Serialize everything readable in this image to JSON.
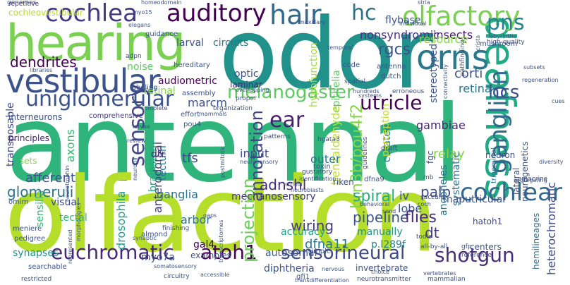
{
  "words": [
    {
      "text": "antennal",
      "color": "#2fb47c"
    },
    {
      "text": "olfaction",
      "color": "#b5de2b"
    },
    {
      "text": "odor",
      "color": "#21918c"
    },
    {
      "text": "hearing",
      "color": "#7ad151"
    },
    {
      "text": "vestibular",
      "color": "#3b528b"
    },
    {
      "text": "deafness",
      "color": "#22a884"
    },
    {
      "text": "olfactory",
      "color": "#7ad151"
    },
    {
      "text": "orns",
      "color": "#2a788e"
    },
    {
      "text": "cochlea",
      "color": "#443a83"
    },
    {
      "text": "auditory",
      "color": "#440154"
    },
    {
      "text": "hair",
      "color": "#31688e"
    },
    {
      "text": "sensory",
      "color": "#414487"
    },
    {
      "text": "uniglomerular",
      "color": "#3b528b"
    },
    {
      "text": "melanogaster",
      "color": "#5ec962"
    },
    {
      "text": "euchromatic",
      "color": "#482878"
    },
    {
      "text": "atoh1",
      "color": "#440154"
    },
    {
      "text": "sensorineural",
      "color": "#3e4989"
    },
    {
      "text": "shotgun",
      "color": "#472d7b"
    },
    {
      "text": "cochlear",
      "color": "#31688e"
    },
    {
      "text": "ganglion",
      "color": "#31688e"
    },
    {
      "text": "pns",
      "color": "#26828e"
    },
    {
      "text": "hc",
      "color": "#2c728e"
    },
    {
      "text": "hcs",
      "color": "#3b528b"
    },
    {
      "text": "utricle",
      "color": "#440154"
    },
    {
      "text": "ear",
      "color": "#481f70"
    },
    {
      "text": "annotation",
      "color": "#414487"
    },
    {
      "text": "brn3b/pou4f2",
      "color": "#86d549"
    },
    {
      "text": "projection",
      "color": "#6ccd5a"
    },
    {
      "text": "pipeline",
      "color": "#3b528b"
    },
    {
      "text": "flies",
      "color": "#482878"
    },
    {
      "text": "wiring",
      "color": "#443a83"
    },
    {
      "text": "dfna11",
      "color": "#2a788e"
    },
    {
      "text": "dt",
      "color": "#443a83"
    },
    {
      "text": "spiral",
      "color": "#27ad81"
    },
    {
      "text": "palp",
      "color": "#3e4989"
    },
    {
      "text": "drosophila",
      "color": "#1f9e89"
    },
    {
      "text": "glomeruli",
      "color": "#2c728e"
    },
    {
      "text": "anterodorsal",
      "color": "#443983"
    },
    {
      "text": "adnshl",
      "color": "#482878"
    },
    {
      "text": "dendrites",
      "color": "#440154"
    },
    {
      "text": "rgcs",
      "color": "#3b528b"
    },
    {
      "text": "insects",
      "color": "#481b6d"
    },
    {
      "text": "corti",
      "color": "#3b528b"
    },
    {
      "text": "retina",
      "color": "#2c728e"
    },
    {
      "text": "gambiae",
      "color": "#482878"
    },
    {
      "text": "nonsyndromic",
      "color": "#463480"
    },
    {
      "text": "flybase",
      "color": "#3b528b"
    },
    {
      "text": "larval",
      "color": "#3b528b"
    },
    {
      "text": "circuits",
      "color": "#2c728e"
    },
    {
      "text": "resource",
      "color": "#86d549"
    },
    {
      "text": "stereotyped",
      "color": "#3b528b"
    },
    {
      "text": "epithelia",
      "color": "#5ec962"
    },
    {
      "text": "hypofunction",
      "color": "#a2da37"
    },
    {
      "text": "benzaldehyde",
      "color": "#c2df23"
    },
    {
      "text": "tfs",
      "color": "#3e4989"
    },
    {
      "text": "marcm",
      "color": "#3b528b"
    },
    {
      "text": "audiometric",
      "color": "#440154"
    },
    {
      "text": "optic",
      "color": "#3b528b"
    },
    {
      "text": "laminar",
      "color": "#482878"
    },
    {
      "text": "noise",
      "color": "#5ec962"
    },
    {
      "text": "retinal",
      "color": "#86d549"
    },
    {
      "text": "axons",
      "color": "#38b977"
    },
    {
      "text": "brainstem",
      "color": "#22a884"
    },
    {
      "text": "tectum",
      "color": "#2a788e"
    },
    {
      "text": "dtr",
      "color": "#482878"
    },
    {
      "text": "input",
      "color": "#3e4989"
    },
    {
      "text": "outer",
      "color": "#2c728e"
    },
    {
      "text": "curated",
      "color": "#2c728e"
    },
    {
      "text": "relay",
      "color": "#86d549"
    },
    {
      "text": "perception",
      "color": "#c2df23"
    },
    {
      "text": "afferent",
      "color": "#3b528b"
    },
    {
      "text": "visual",
      "color": "#3e4989"
    },
    {
      "text": "ganglia",
      "color": "#2c728e"
    },
    {
      "text": "mechanosensory",
      "color": "#443983"
    },
    {
      "text": "arbor",
      "color": "#2c728e"
    },
    {
      "text": "iv",
      "color": "#3b528b"
    },
    {
      "text": "lobe",
      "color": "#3b528b"
    },
    {
      "text": "anopheles",
      "color": "#2c728e"
    },
    {
      "text": "systematic",
      "color": "#2c728e"
    },
    {
      "text": "accuracy",
      "color": "#1f9e89"
    },
    {
      "text": "manually",
      "color": "#21918c"
    },
    {
      "text": "p.l289f",
      "color": "#26828e"
    },
    {
      "text": "tectal",
      "color": "#38b977"
    },
    {
      "text": "gal4",
      "color": "#440154"
    },
    {
      "text": "myo7a",
      "color": "#3b528b"
    },
    {
      "text": "autosomal",
      "color": "#3b528b"
    },
    {
      "text": "diphtheria",
      "color": "#3b528b"
    },
    {
      "text": "synapses",
      "color": "#21918c"
    },
    {
      "text": "sensilla",
      "color": "#38b977"
    },
    {
      "text": "transposable",
      "color": "#3e4989"
    },
    {
      "text": "principles",
      "color": "#481f70"
    },
    {
      "text": "sets",
      "color": "#86d549"
    },
    {
      "text": "cochleovestibular",
      "color": "#b5de2b"
    },
    {
      "text": "interneurons",
      "color": "#3b528b"
    },
    {
      "text": "comprehensive",
      "color": "#443983"
    },
    {
      "text": "heterochromatic",
      "color": "#3e4989"
    },
    {
      "text": "repetitive",
      "color": "#482878"
    },
    {
      "text": "genomes",
      "color": "#3b528b"
    },
    {
      "text": "hatoh1",
      "color": "#3e4989"
    },
    {
      "text": "centers",
      "color": "#3b528b"
    },
    {
      "text": "examples",
      "color": "#3b528b"
    },
    {
      "text": "hemilineages",
      "color": "#2c728e"
    },
    {
      "text": "invertebrate",
      "color": "#3b528b"
    },
    {
      "text": "guidance",
      "color": "#3b528b"
    },
    {
      "text": "hereditary",
      "color": "#3b528b"
    },
    {
      "text": "lateral",
      "color": "#3b528b"
    },
    {
      "text": "neurogenetics",
      "color": "#3b528b"
    },
    {
      "text": "fgc",
      "color": "#3e4989"
    },
    {
      "text": "trigeminal",
      "color": "#2c728e"
    },
    {
      "text": "neuron",
      "color": "#3b528b"
    },
    {
      "text": "riken",
      "color": "#3b528b"
    },
    {
      "text": "dfna9",
      "color": "#3b528b"
    },
    {
      "text": "toxin",
      "color": "#3b528b"
    },
    {
      "text": "pathfinding",
      "color": "#3b528b"
    },
    {
      "text": "mushroom",
      "color": "#3b528b"
    },
    {
      "text": "amacrine",
      "color": "#3b528b"
    },
    {
      "text": "omim",
      "color": "#3b528b"
    },
    {
      "text": "meniere",
      "color": "#3b528b"
    },
    {
      "text": "pedigree",
      "color": "#3b528b"
    },
    {
      "text": "almond",
      "color": "#3b528b"
    },
    {
      "text": "finishing",
      "color": "#3b528b"
    },
    {
      "text": "gfi1",
      "color": "#3b528b"
    },
    {
      "text": "simple",
      "color": "#3b528b"
    },
    {
      "text": "tools",
      "color": "#3b528b"
    },
    {
      "text": "all-by-all",
      "color": "#3b528b"
    },
    {
      "text": "gfp",
      "color": "#3b528b"
    },
    {
      "text": "reference",
      "color": "#3b528b"
    },
    {
      "text": "mammalian",
      "color": "#3b528b"
    },
    {
      "text": "neurotransmitter",
      "color": "#3b528b"
    },
    {
      "text": "transdifferentiation",
      "color": "#3b528b"
    },
    {
      "text": "choice",
      "color": "#3b528b"
    },
    {
      "text": "vertebrates",
      "color": "#3b528b"
    },
    {
      "text": "restricted",
      "color": "#3b528b"
    },
    {
      "text": "circuitry",
      "color": "#3b528b"
    },
    {
      "text": "somatosensory",
      "color": "#3b528b"
    },
    {
      "text": "guidelines",
      "color": "#3b528b"
    },
    {
      "text": "draft",
      "color": "#3b528b"
    },
    {
      "text": "patterns",
      "color": "#3b528b"
    },
    {
      "text": "maxillary",
      "color": "#3b528b"
    },
    {
      "text": "antenna",
      "color": "#3b528b"
    },
    {
      "text": "dutch",
      "color": "#3b528b"
    },
    {
      "text": "code",
      "color": "#3b528b"
    },
    {
      "text": "overlapping",
      "color": "#3b528b"
    },
    {
      "text": "spatial",
      "color": "#3b528b"
    },
    {
      "text": "hundreds",
      "color": "#3b528b"
    },
    {
      "text": "erroneous",
      "color": "#3b528b"
    },
    {
      "text": "effort",
      "color": "#3b528b"
    },
    {
      "text": "proper",
      "color": "#3b528b"
    },
    {
      "text": "organization",
      "color": "#3b528b"
    },
    {
      "text": "pou4",
      "color": "#3b528b"
    },
    {
      "text": "complete",
      "color": "#3b528b"
    },
    {
      "text": "assembly",
      "color": "#3b528b"
    },
    {
      "text": "labeling",
      "color": "#3b528b"
    },
    {
      "text": "adpn",
      "color": "#3b528b"
    },
    {
      "text": "elegans",
      "color": "#3b528b"
    },
    {
      "text": "homeodomain",
      "color": "#3b528b"
    },
    {
      "text": "myo15",
      "color": "#3b528b"
    },
    {
      "text": "high-quality",
      "color": "#3b528b"
    },
    {
      "text": "connectivity",
      "color": "#3b528b"
    },
    {
      "text": "gustatory",
      "color": "#3b528b"
    },
    {
      "text": "identification",
      "color": "#3b528b"
    },
    {
      "text": "neurosensory",
      "color": "#3b528b"
    },
    {
      "text": "postmitotic",
      "color": "#3b528b"
    },
    {
      "text": "neurotrophin",
      "color": "#3b528b"
    },
    {
      "text": "searchable",
      "color": "#3b528b"
    },
    {
      "text": "represented",
      "color": "#3b528b"
    },
    {
      "text": "morphologies",
      "color": "#3b528b"
    },
    {
      "text": "synaptic",
      "color": "#3b528b"
    },
    {
      "text": "transcriptomes",
      "color": "#3b528b"
    },
    {
      "text": "striola",
      "color": "#3b528b"
    },
    {
      "text": "neuroblasts",
      "color": "#3b528b"
    },
    {
      "text": "behavioral",
      "color": "#3b528b"
    },
    {
      "text": "saccule",
      "color": "#3b528b"
    },
    {
      "text": "coch",
      "color": "#3b528b"
    },
    {
      "text": "send",
      "color": "#3b528b"
    },
    {
      "text": "mb",
      "color": "#3b528b"
    },
    {
      "text": "segregating",
      "color": "#3b528b"
    },
    {
      "text": "cues",
      "color": "#3b528b"
    },
    {
      "text": "diversity",
      "color": "#3b528b"
    },
    {
      "text": "mammals",
      "color": "#3b528b"
    },
    {
      "text": "libraries",
      "color": "#3b528b"
    },
    {
      "text": "larvae",
      "color": "#3b528b"
    },
    {
      "text": "neuropil",
      "color": "#3b528b"
    },
    {
      "text": "review",
      "color": "#3b528b"
    },
    {
      "text": "hgata3",
      "color": "#3b528b"
    },
    {
      "text": "accessible",
      "color": "#3b528b"
    },
    {
      "text": "nervous",
      "color": "#3b528b"
    },
    {
      "text": "maputricular",
      "color": "#3b528b"
    },
    {
      "text": "temporal",
      "color": "#3b528b"
    },
    {
      "text": "individual",
      "color": "#3b528b"
    },
    {
      "text": "gaps",
      "color": "#3b528b"
    },
    {
      "text": "labyrinths",
      "color": "#3b528b"
    },
    {
      "text": "regeneration",
      "color": "#3b528b"
    },
    {
      "text": "systems",
      "color": "#3b528b"
    },
    {
      "text": "subsets",
      "color": "#3b528b"
    },
    {
      "text": "crista",
      "color": "#3b528b"
    },
    {
      "text": "stria",
      "color": "#3b528b"
    }
  ]
}
